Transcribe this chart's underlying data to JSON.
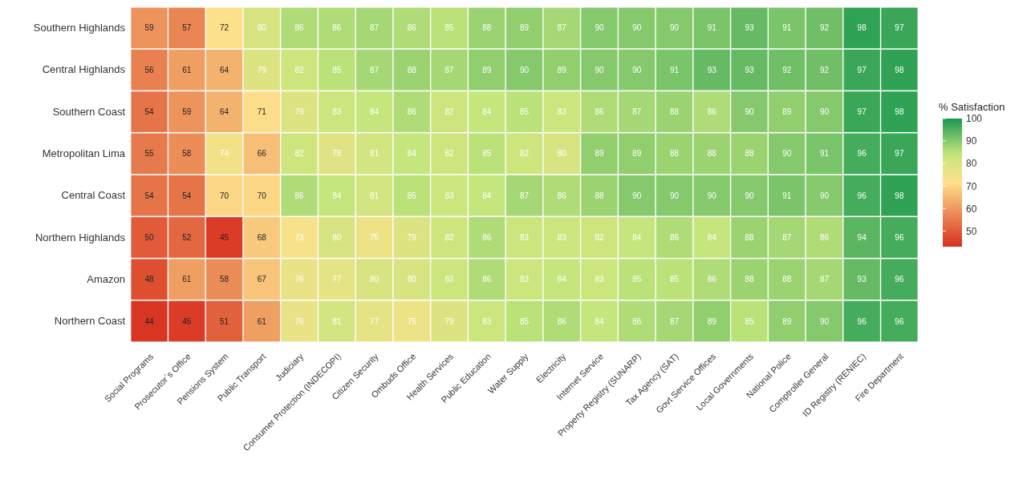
{
  "chart_data": {
    "type": "heatmap",
    "categories": [
      "Social Programs",
      "Prosecutor´s Office",
      "Pensions System",
      "Public Transport",
      "Judiciary",
      "Consumer Protection (INDECOPI)",
      "Citizen Security",
      "Ombuds Office",
      "Health Services",
      "Public Education",
      "Water Supply",
      "Electricity",
      "Internet Service",
      "Property Registry (SUNARP)",
      "Tax Agency (SAT)",
      "Govt Service Offices",
      "Local Governments",
      "National Police",
      "Comptroller General",
      "ID Registry (RENIEC)",
      "Fire Department"
    ],
    "y_categories": [
      "Southern Highlands",
      "Central Highlands",
      "Southern Coast",
      "Metropolitan Lima",
      "Central Coast",
      "Northern Highlands",
      "Amazon",
      "Northern Coast"
    ],
    "cells": [
      [
        59,
        57,
        72,
        80,
        86,
        86,
        87,
        86,
        85,
        88,
        89,
        87,
        90,
        90,
        90,
        91,
        93,
        91,
        92,
        98,
        97
      ],
      [
        56,
        61,
        64,
        79,
        82,
        85,
        87,
        88,
        87,
        89,
        90,
        89,
        90,
        90,
        91,
        93,
        93,
        92,
        92,
        97,
        98
      ],
      [
        54,
        59,
        64,
        71,
        79,
        83,
        84,
        86,
        82,
        84,
        85,
        83,
        86,
        87,
        88,
        86,
        90,
        89,
        90,
        97,
        98
      ],
      [
        55,
        58,
        74,
        66,
        82,
        78,
        81,
        84,
        82,
        85,
        82,
        80,
        89,
        89,
        88,
        88,
        88,
        90,
        91,
        96,
        97
      ],
      [
        54,
        54,
        70,
        70,
        86,
        84,
        81,
        85,
        83,
        84,
        87,
        86,
        88,
        90,
        90,
        90,
        90,
        91,
        90,
        96,
        98
      ],
      [
        50,
        52,
        45,
        68,
        73,
        80,
        75,
        79,
        82,
        86,
        83,
        83,
        82,
        84,
        86,
        84,
        88,
        87,
        86,
        94,
        96
      ],
      [
        48,
        61,
        58,
        67,
        76,
        77,
        80,
        80,
        83,
        86,
        83,
        84,
        83,
        85,
        85,
        86,
        88,
        88,
        87,
        93,
        96
      ],
      [
        44,
        45,
        51,
        61,
        76,
        81,
        77,
        75,
        79,
        83,
        85,
        86,
        84,
        86,
        87,
        89,
        85,
        89,
        90,
        96,
        96
      ]
    ],
    "data_labels": true,
    "clabel": "% Satisfaction",
    "clim": [
      43,
      100
    ],
    "cticks": [
      50,
      60,
      70,
      80,
      90,
      100
    ]
  }
}
